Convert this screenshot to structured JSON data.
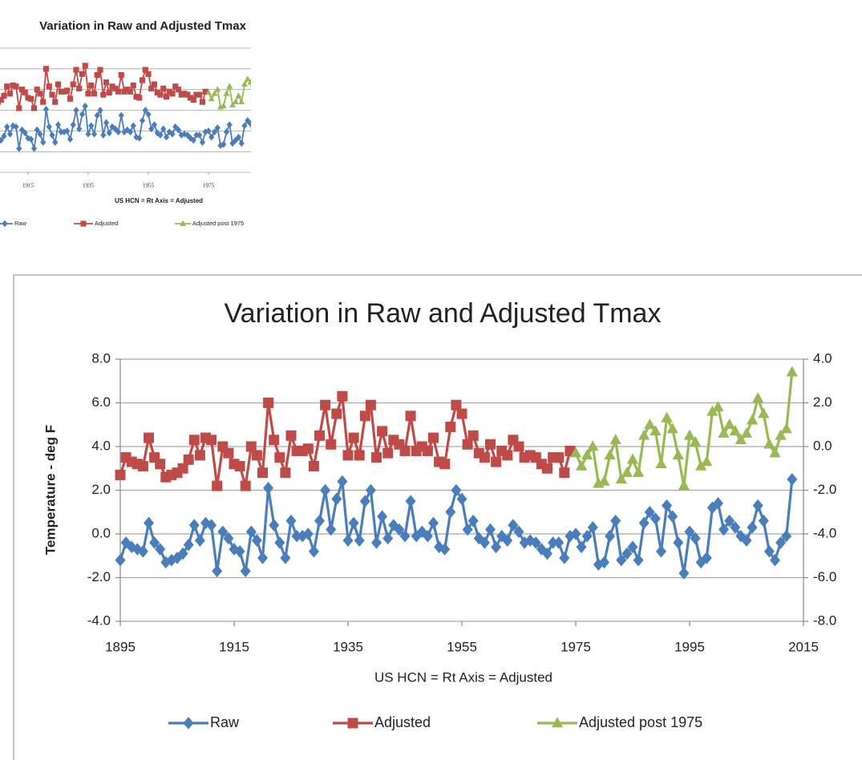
{
  "chart_data": {
    "type": "line",
    "title": "Variation in Raw and Adjusted Tmax",
    "x_label": "US HCN = Rt Axis = Adjusted",
    "y_label": "Temperature - deg F",
    "x": [
      1895,
      1896,
      1897,
      1898,
      1899,
      1900,
      1901,
      1902,
      1903,
      1904,
      1905,
      1906,
      1907,
      1908,
      1909,
      1910,
      1911,
      1912,
      1913,
      1914,
      1915,
      1916,
      1917,
      1918,
      1919,
      1920,
      1921,
      1922,
      1923,
      1924,
      1925,
      1926,
      1927,
      1928,
      1929,
      1930,
      1931,
      1932,
      1933,
      1934,
      1935,
      1936,
      1937,
      1938,
      1939,
      1940,
      1941,
      1942,
      1943,
      1944,
      1945,
      1946,
      1947,
      1948,
      1949,
      1950,
      1951,
      1952,
      1953,
      1954,
      1955,
      1956,
      1957,
      1958,
      1959,
      1960,
      1961,
      1962,
      1963,
      1964,
      1965,
      1966,
      1967,
      1968,
      1969,
      1970,
      1971,
      1972,
      1973,
      1974,
      1975,
      1976,
      1977,
      1978,
      1979,
      1980,
      1981,
      1982,
      1983,
      1984,
      1985,
      1986,
      1987,
      1988,
      1989,
      1990,
      1991,
      1992,
      1993,
      1994,
      1995,
      1996,
      1997,
      1998,
      1999,
      2000,
      2001,
      2002,
      2003,
      2004,
      2005,
      2006,
      2007,
      2008,
      2009,
      2010,
      2011,
      2012,
      2013
    ],
    "series": [
      {
        "name": "Raw",
        "color": "#4a7ebb",
        "marker": "diamond",
        "values": [
          -1.2,
          -0.4,
          -0.6,
          -0.7,
          -0.8,
          0.5,
          -0.4,
          -0.7,
          -1.3,
          -1.2,
          -1.1,
          -0.9,
          -0.5,
          0.4,
          -0.3,
          0.5,
          0.4,
          -1.7,
          0.1,
          -0.2,
          -0.7,
          -0.8,
          -1.7,
          0.1,
          -0.3,
          -1.1,
          2.1,
          0.4,
          -0.4,
          -1.1,
          0.6,
          -0.1,
          -0.1,
          0.0,
          -0.8,
          0.6,
          2.0,
          0.2,
          1.6,
          2.4,
          -0.3,
          0.5,
          -0.3,
          1.5,
          2.0,
          -0.4,
          0.8,
          -0.2,
          0.4,
          0.2,
          -0.1,
          1.5,
          -0.1,
          0.1,
          -0.1,
          0.5,
          -0.6,
          -0.7,
          1.0,
          2.0,
          1.6,
          0.2,
          0.6,
          -0.2,
          -0.4,
          0.2,
          -0.6,
          -0.1,
          -0.3,
          0.4,
          0.1,
          -0.4,
          -0.3,
          -0.4,
          -0.7,
          -0.9,
          -0.4,
          -0.4,
          -1.1,
          -0.1,
          0.0,
          -0.6,
          -0.1,
          0.3,
          -1.4,
          -1.3,
          -0.1,
          0.6,
          -1.2,
          -0.9,
          -0.6,
          -1.2,
          0.5,
          1.0,
          0.7,
          -0.8,
          1.3,
          0.8,
          -0.4,
          -1.8,
          0.1,
          -0.2,
          -1.3,
          -1.1,
          1.2,
          1.4,
          0.2,
          0.6,
          0.3,
          -0.1,
          -0.3,
          0.3,
          1.3,
          0.6,
          -0.8,
          -1.2,
          -0.4,
          -0.1,
          2.5
        ]
      },
      {
        "name": "Adjusted",
        "color": "#be4b48",
        "marker": "square",
        "axis": "y2",
        "values": [
          -1.3,
          -0.5,
          -0.7,
          -0.8,
          -0.9,
          0.4,
          -0.5,
          -0.8,
          -1.4,
          -1.3,
          -1.2,
          -1.0,
          -0.6,
          0.3,
          -0.4,
          0.4,
          0.3,
          -1.8,
          0.0,
          -0.3,
          -0.8,
          -0.9,
          -1.8,
          0.0,
          -0.4,
          -1.2,
          2.0,
          0.3,
          -0.5,
          -1.2,
          0.5,
          -0.2,
          -0.2,
          -0.1,
          -0.9,
          0.5,
          1.9,
          0.1,
          1.5,
          2.3,
          -0.4,
          0.4,
          -0.4,
          1.4,
          1.9,
          -0.5,
          0.7,
          -0.3,
          0.3,
          0.1,
          -0.2,
          1.4,
          -0.2,
          0.0,
          -0.2,
          0.4,
          -0.7,
          -0.8,
          0.9,
          1.9,
          1.5,
          0.1,
          0.5,
          -0.3,
          -0.5,
          0.1,
          -0.7,
          -0.2,
          -0.4,
          0.3,
          0.0,
          -0.5,
          -0.4,
          -0.5,
          -0.8,
          -1.0,
          -0.5,
          -0.5,
          -1.2,
          -0.2,
          null,
          null,
          null,
          null,
          null,
          null,
          null,
          null,
          null,
          null,
          null,
          null,
          null,
          null,
          null,
          null,
          null,
          null,
          null,
          null,
          null,
          null,
          null,
          null,
          null,
          null,
          null,
          null,
          null,
          null,
          null,
          null,
          null,
          null,
          null,
          null,
          null,
          null,
          null
        ]
      },
      {
        "name": "Adjusted post 1975",
        "color": "#98b954",
        "marker": "triangle",
        "axis": "y2",
        "values": [
          null,
          null,
          null,
          null,
          null,
          null,
          null,
          null,
          null,
          null,
          null,
          null,
          null,
          null,
          null,
          null,
          null,
          null,
          null,
          null,
          null,
          null,
          null,
          null,
          null,
          null,
          null,
          null,
          null,
          null,
          null,
          null,
          null,
          null,
          null,
          null,
          null,
          null,
          null,
          null,
          null,
          null,
          null,
          null,
          null,
          null,
          null,
          null,
          null,
          null,
          null,
          null,
          null,
          null,
          null,
          null,
          null,
          null,
          null,
          null,
          null,
          null,
          null,
          null,
          null,
          null,
          null,
          null,
          null,
          null,
          null,
          null,
          null,
          null,
          null,
          null,
          null,
          null,
          null,
          null,
          -0.3,
          -0.9,
          -0.4,
          0.0,
          -1.7,
          -1.6,
          -0.4,
          0.3,
          -1.5,
          -1.2,
          -0.6,
          -1.2,
          0.5,
          1.0,
          0.7,
          -0.8,
          1.3,
          0.8,
          -0.4,
          -1.8,
          0.5,
          0.2,
          -0.9,
          -0.7,
          1.6,
          1.8,
          0.6,
          1.0,
          0.7,
          0.3,
          0.6,
          1.2,
          2.2,
          1.5,
          0.1,
          -0.3,
          0.5,
          0.8,
          3.4
        ]
      }
    ],
    "xlim": [
      1895,
      2015
    ],
    "xticks": [
      1895,
      1915,
      1935,
      1955,
      1975,
      1995,
      2015
    ],
    "ylim": [
      -4,
      8
    ],
    "yticks": [
      {
        "value": 8,
        "label": "8.0"
      },
      {
        "value": 6,
        "label": "6.0"
      },
      {
        "value": 4,
        "label": "4.0"
      },
      {
        "value": 2,
        "label": "2.0"
      },
      {
        "value": 0,
        "label": "0.0"
      },
      {
        "value": -2,
        "label": "-2.0"
      },
      {
        "value": -4,
        "label": "-4.0"
      }
    ],
    "y2lim": [
      -8,
      4
    ],
    "y2ticks": [
      {
        "value": 4,
        "label": "4.0"
      },
      {
        "value": 2,
        "label": "2.0"
      },
      {
        "value": 0,
        "label": "0.0"
      },
      {
        "value": -2,
        "label": "-2.0"
      },
      {
        "value": -4,
        "label": "-4.0"
      },
      {
        "value": -6,
        "label": "-6.0"
      },
      {
        "value": -8,
        "label": "-8.0"
      }
    ],
    "grid": true,
    "legend": "bottom"
  }
}
